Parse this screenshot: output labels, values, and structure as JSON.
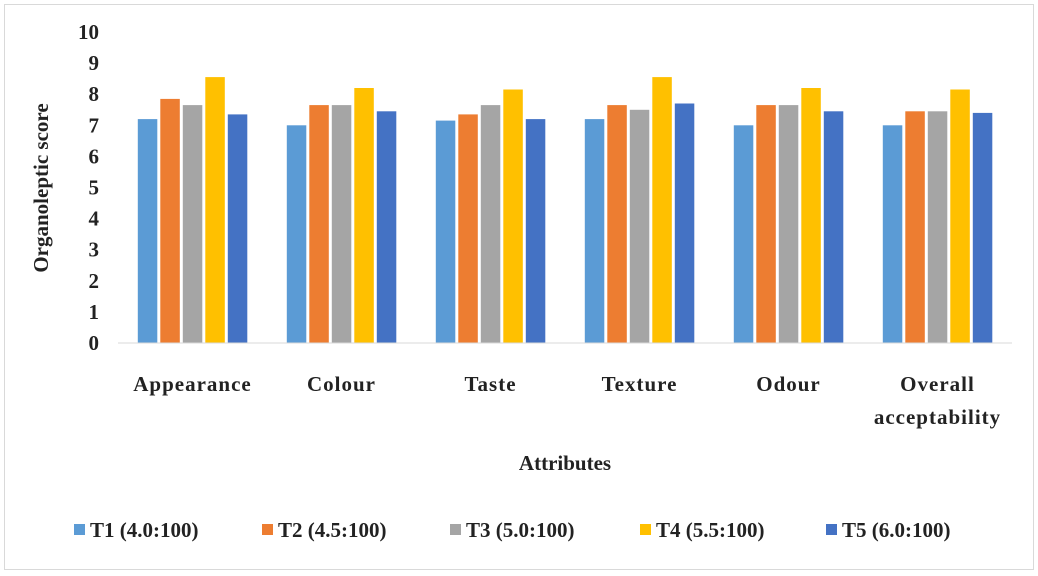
{
  "chart_data": {
    "type": "bar",
    "xlabel": "Attributes",
    "ylabel": "Organoleptic score",
    "ylim": [
      0,
      10
    ],
    "yticks": [
      "0",
      "1",
      "2",
      "3",
      "4",
      "5",
      "6",
      "7",
      "8",
      "9",
      "10"
    ],
    "grid": false,
    "legend_position": "bottom",
    "categories": [
      [
        "Appearance"
      ],
      [
        "Colour"
      ],
      [
        "Taste"
      ],
      [
        "Texture"
      ],
      [
        "Odour"
      ],
      [
        "Overall",
        "acceptability"
      ]
    ],
    "series": [
      {
        "name": "T1 (4.0:100)",
        "color": "#5b9bd5",
        "values": [
          7.2,
          7.0,
          7.15,
          7.2,
          7.0,
          7.0
        ]
      },
      {
        "name": "T2 (4.5:100)",
        "color": "#ed7d31",
        "values": [
          7.85,
          7.65,
          7.35,
          7.65,
          7.65,
          7.45
        ]
      },
      {
        "name": "T3 (5.0:100)",
        "color": "#a5a5a5",
        "values": [
          7.65,
          7.65,
          7.65,
          7.5,
          7.65,
          7.45
        ]
      },
      {
        "name": "T4 (5.5:100)",
        "color": "#ffc000",
        "values": [
          8.55,
          8.2,
          8.15,
          8.55,
          8.2,
          8.15
        ]
      },
      {
        "name": "T5 (6.0:100)",
        "color": "#4472c4",
        "values": [
          7.35,
          7.45,
          7.2,
          7.7,
          7.45,
          7.4
        ]
      }
    ]
  }
}
